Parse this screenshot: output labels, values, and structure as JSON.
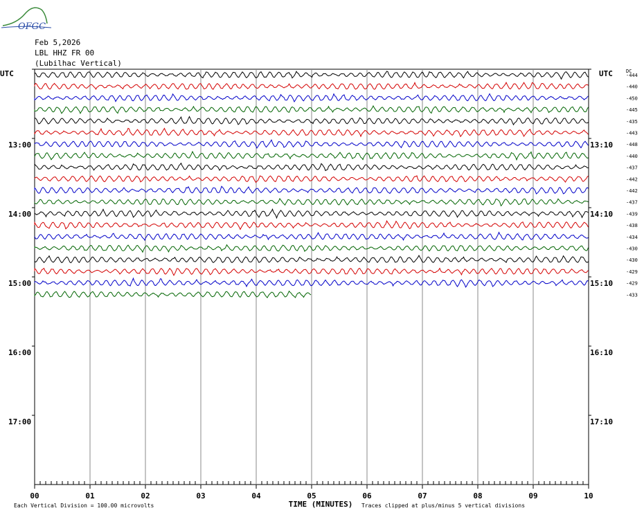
{
  "logo_text": "OFGC",
  "header": {
    "date": "Feb 5,2026",
    "station": "LBL HHZ FR 00",
    "location": "(Lubilhac Vertical)"
  },
  "colors": {
    "trace_cycle": [
      "#000000",
      "#d40000",
      "#0000c8",
      "#006400"
    ],
    "grid": "#888888",
    "logo_green": "#3a8a3a",
    "logo_blue": "#2c4ea8"
  },
  "chart_data": {
    "type": "line",
    "left_label": "UTC",
    "right_label": "UTC",
    "dc_label": "DC",
    "left_times": [
      "13:00",
      "14:00",
      "15:00",
      "16:00",
      "17:00"
    ],
    "right_times": [
      "13:10",
      "14:10",
      "15:10",
      "16:10",
      "17:10"
    ],
    "x_ticks": [
      "00",
      "01",
      "02",
      "03",
      "04",
      "05",
      "06",
      "07",
      "08",
      "09",
      "10"
    ],
    "xlabel": "TIME (MINUTES)",
    "xlim": [
      0,
      10
    ],
    "dc_offsets": [
      -444,
      -440,
      -450,
      -445,
      -435,
      -443,
      -448,
      -440,
      -437,
      -442,
      -442,
      -437,
      -439,
      -438,
      -434,
      -430,
      -430,
      -429,
      -429,
      -433
    ],
    "trace_minutes": [
      10,
      10,
      10,
      10,
      10,
      10,
      10,
      10,
      10,
      10,
      10,
      10,
      10,
      10,
      10,
      10,
      10,
      10,
      10,
      5
    ],
    "footer_left": "Each Vertical Division =  100.00 microvolts",
    "footer_right": "Traces clipped at plus/minus 5 vertical divisions"
  }
}
